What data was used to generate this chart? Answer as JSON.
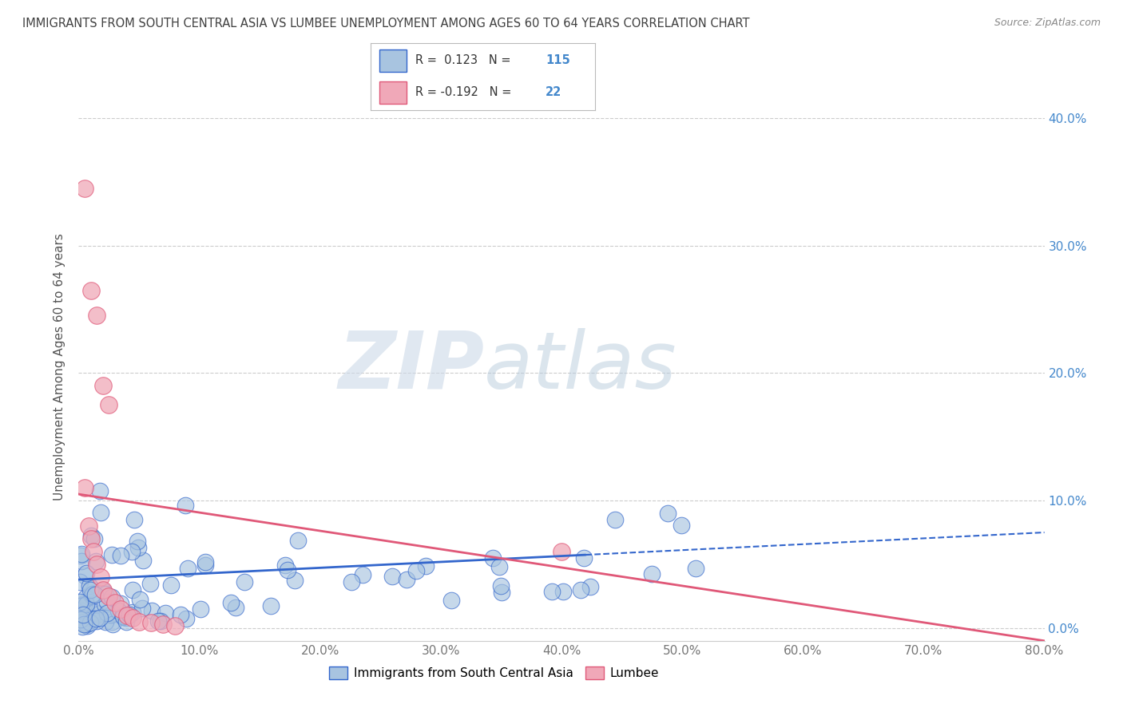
{
  "title": "IMMIGRANTS FROM SOUTH CENTRAL ASIA VS LUMBEE UNEMPLOYMENT AMONG AGES 60 TO 64 YEARS CORRELATION CHART",
  "source": "Source: ZipAtlas.com",
  "ylabel": "Unemployment Among Ages 60 to 64 years",
  "xlabel_bottom": "Immigrants from South Central Asia",
  "watermark": "ZIPatlas",
  "xlim": [
    0.0,
    0.8
  ],
  "ylim": [
    -0.01,
    0.42
  ],
  "yticks": [
    0.0,
    0.1,
    0.2,
    0.3,
    0.4
  ],
  "ytick_labels_right": [
    "0.0%",
    "10.0%",
    "20.0%",
    "30.0%",
    "40.0%"
  ],
  "xticks": [
    0.0,
    0.1,
    0.2,
    0.3,
    0.4,
    0.5,
    0.6,
    0.7,
    0.8
  ],
  "xtick_labels": [
    "0.0%",
    "10.0%",
    "20.0%",
    "30.0%",
    "40.0%",
    "50.0%",
    "60.0%",
    "70.0%",
    "80.0%"
  ],
  "blue_R": 0.123,
  "blue_N": 115,
  "pink_R": -0.192,
  "pink_N": 22,
  "blue_color": "#a8c4e0",
  "pink_color": "#f0a8b8",
  "blue_line_color": "#3366cc",
  "pink_line_color": "#e05878",
  "grid_color": "#cccccc",
  "title_color": "#404040",
  "source_color": "#888888",
  "right_axis_color": "#4488cc",
  "background_color": "#ffffff",
  "blue_line_solid_end": 0.42,
  "blue_line_start_y": 0.038,
  "blue_line_end_y": 0.075,
  "pink_line_start_y": 0.105,
  "pink_line_end_y": -0.01,
  "legend_R_color": "#333333",
  "legend_N_color": "#4488cc"
}
